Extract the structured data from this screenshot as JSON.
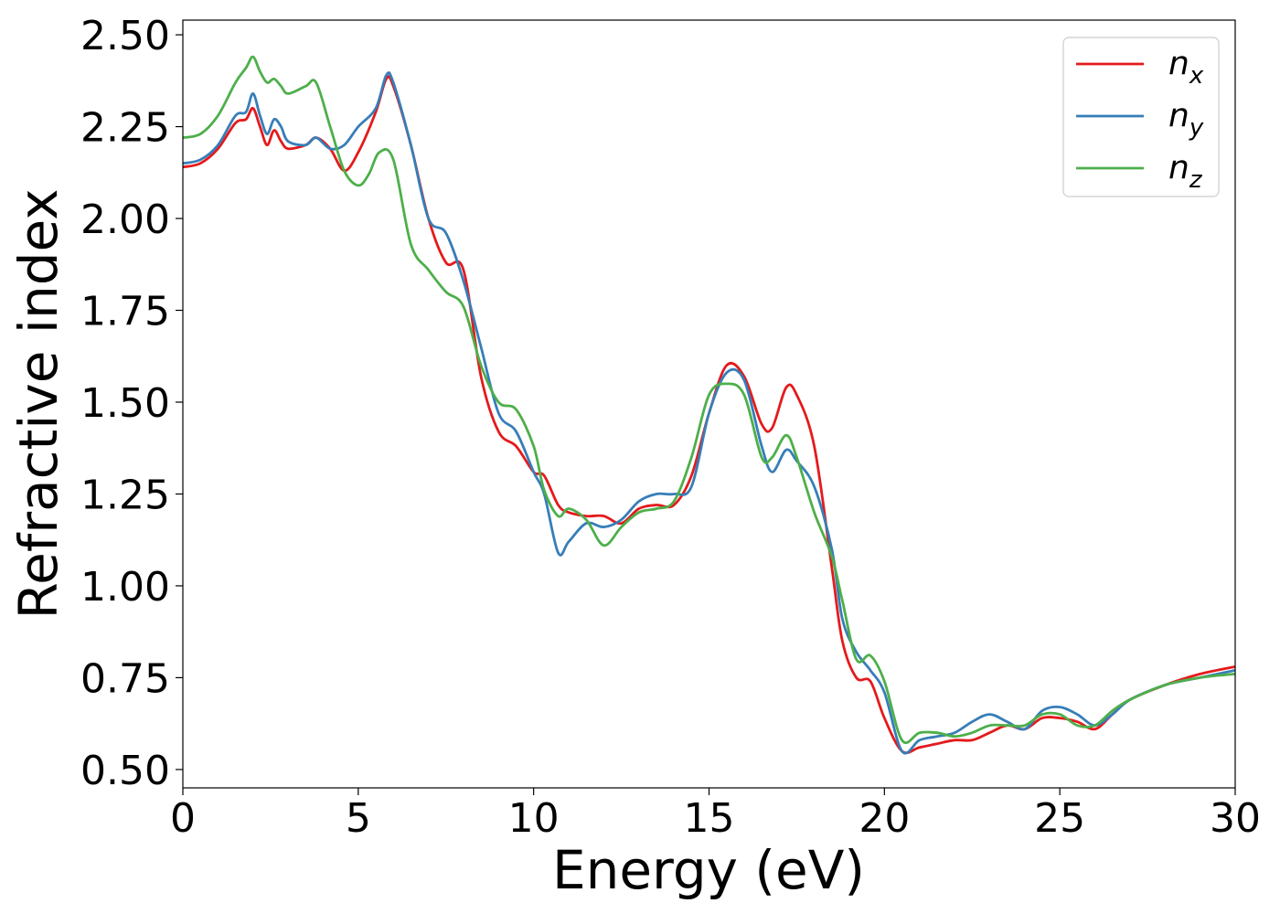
{
  "chart_data": {
    "type": "line",
    "xlabel": "Energy (eV)",
    "ylabel": "Refractive index",
    "xlim": [
      0,
      30
    ],
    "ylim": [
      0.45,
      2.54
    ],
    "xticks": [
      "0",
      "5",
      "10",
      "15",
      "20",
      "25",
      "30"
    ],
    "yticks": [
      "0.50",
      "0.75",
      "1.00",
      "1.25",
      "1.50",
      "1.75",
      "2.00",
      "2.25",
      "2.50"
    ],
    "grid": false,
    "legend_position": "top-right",
    "series": [
      {
        "name": "n",
        "subscript": "x",
        "color": "#e41a1c",
        "points": [
          [
            0,
            2.14
          ],
          [
            0.5,
            2.15
          ],
          [
            1,
            2.19
          ],
          [
            1.5,
            2.26
          ],
          [
            1.8,
            2.27
          ],
          [
            2,
            2.3
          ],
          [
            2.2,
            2.25
          ],
          [
            2.4,
            2.2
          ],
          [
            2.6,
            2.24
          ],
          [
            2.8,
            2.21
          ],
          [
            3,
            2.19
          ],
          [
            3.5,
            2.2
          ],
          [
            3.8,
            2.22
          ],
          [
            4.2,
            2.19
          ],
          [
            4.6,
            2.13
          ],
          [
            5,
            2.18
          ],
          [
            5.5,
            2.29
          ],
          [
            5.8,
            2.38
          ],
          [
            6,
            2.36
          ],
          [
            6.5,
            2.2
          ],
          [
            7,
            2.0
          ],
          [
            7.5,
            1.88
          ],
          [
            8,
            1.86
          ],
          [
            8.5,
            1.57
          ],
          [
            9,
            1.42
          ],
          [
            9.5,
            1.38
          ],
          [
            10,
            1.31
          ],
          [
            10.3,
            1.3
          ],
          [
            10.7,
            1.22
          ],
          [
            11,
            1.2
          ],
          [
            11.5,
            1.19
          ],
          [
            12,
            1.19
          ],
          [
            12.5,
            1.17
          ],
          [
            13,
            1.21
          ],
          [
            13.5,
            1.22
          ],
          [
            14,
            1.22
          ],
          [
            14.5,
            1.3
          ],
          [
            15,
            1.47
          ],
          [
            15.5,
            1.6
          ],
          [
            16,
            1.57
          ],
          [
            16.5,
            1.44
          ],
          [
            16.8,
            1.43
          ],
          [
            17.2,
            1.54
          ],
          [
            17.5,
            1.52
          ],
          [
            18,
            1.38
          ],
          [
            18.5,
            1.05
          ],
          [
            18.8,
            0.85
          ],
          [
            19.2,
            0.75
          ],
          [
            19.6,
            0.74
          ],
          [
            20,
            0.64
          ],
          [
            20.5,
            0.55
          ],
          [
            21,
            0.56
          ],
          [
            21.5,
            0.57
          ],
          [
            22,
            0.58
          ],
          [
            22.5,
            0.58
          ],
          [
            23,
            0.6
          ],
          [
            23.5,
            0.62
          ],
          [
            24,
            0.61
          ],
          [
            24.5,
            0.64
          ],
          [
            25,
            0.64
          ],
          [
            25.5,
            0.63
          ],
          [
            26,
            0.61
          ],
          [
            26.5,
            0.65
          ],
          [
            27,
            0.69
          ],
          [
            28,
            0.73
          ],
          [
            29,
            0.76
          ],
          [
            30,
            0.78
          ]
        ]
      },
      {
        "name": "n",
        "subscript": "y",
        "color": "#377eb8",
        "points": [
          [
            0,
            2.15
          ],
          [
            0.5,
            2.16
          ],
          [
            1,
            2.2
          ],
          [
            1.5,
            2.28
          ],
          [
            1.8,
            2.29
          ],
          [
            2,
            2.34
          ],
          [
            2.2,
            2.28
          ],
          [
            2.4,
            2.23
          ],
          [
            2.6,
            2.27
          ],
          [
            2.8,
            2.25
          ],
          [
            3,
            2.21
          ],
          [
            3.5,
            2.2
          ],
          [
            3.8,
            2.22
          ],
          [
            4.2,
            2.19
          ],
          [
            4.6,
            2.2
          ],
          [
            5,
            2.25
          ],
          [
            5.5,
            2.3
          ],
          [
            5.8,
            2.39
          ],
          [
            6,
            2.37
          ],
          [
            6.5,
            2.2
          ],
          [
            7,
            2.0
          ],
          [
            7.5,
            1.96
          ],
          [
            8,
            1.83
          ],
          [
            8.5,
            1.65
          ],
          [
            9,
            1.47
          ],
          [
            9.5,
            1.42
          ],
          [
            10,
            1.31
          ],
          [
            10.3,
            1.25
          ],
          [
            10.7,
            1.09
          ],
          [
            11,
            1.12
          ],
          [
            11.5,
            1.17
          ],
          [
            12,
            1.16
          ],
          [
            12.5,
            1.18
          ],
          [
            13,
            1.23
          ],
          [
            13.5,
            1.25
          ],
          [
            14,
            1.25
          ],
          [
            14.5,
            1.27
          ],
          [
            15,
            1.47
          ],
          [
            15.5,
            1.58
          ],
          [
            16,
            1.56
          ],
          [
            16.5,
            1.38
          ],
          [
            16.8,
            1.31
          ],
          [
            17.2,
            1.37
          ],
          [
            17.5,
            1.34
          ],
          [
            18,
            1.27
          ],
          [
            18.5,
            1.1
          ],
          [
            18.8,
            0.91
          ],
          [
            19.2,
            0.82
          ],
          [
            19.6,
            0.77
          ],
          [
            20,
            0.71
          ],
          [
            20.5,
            0.55
          ],
          [
            21,
            0.58
          ],
          [
            21.5,
            0.59
          ],
          [
            22,
            0.6
          ],
          [
            22.5,
            0.63
          ],
          [
            23,
            0.65
          ],
          [
            23.5,
            0.63
          ],
          [
            24,
            0.61
          ],
          [
            24.5,
            0.66
          ],
          [
            25,
            0.67
          ],
          [
            25.5,
            0.65
          ],
          [
            26,
            0.62
          ],
          [
            26.5,
            0.65
          ],
          [
            27,
            0.69
          ],
          [
            28,
            0.73
          ],
          [
            29,
            0.75
          ],
          [
            30,
            0.77
          ]
        ]
      },
      {
        "name": "n",
        "subscript": "z",
        "color": "#4daf4a",
        "points": [
          [
            0,
            2.22
          ],
          [
            0.5,
            2.23
          ],
          [
            1,
            2.28
          ],
          [
            1.5,
            2.37
          ],
          [
            1.8,
            2.41
          ],
          [
            2,
            2.44
          ],
          [
            2.2,
            2.4
          ],
          [
            2.4,
            2.37
          ],
          [
            2.6,
            2.38
          ],
          [
            2.8,
            2.36
          ],
          [
            3,
            2.34
          ],
          [
            3.5,
            2.36
          ],
          [
            3.8,
            2.37
          ],
          [
            4.2,
            2.25
          ],
          [
            4.6,
            2.13
          ],
          [
            5,
            2.09
          ],
          [
            5.3,
            2.12
          ],
          [
            5.6,
            2.18
          ],
          [
            6,
            2.16
          ],
          [
            6.5,
            1.93
          ],
          [
            7,
            1.86
          ],
          [
            7.5,
            1.8
          ],
          [
            8,
            1.76
          ],
          [
            8.5,
            1.6
          ],
          [
            9,
            1.5
          ],
          [
            9.5,
            1.48
          ],
          [
            10,
            1.38
          ],
          [
            10.3,
            1.26
          ],
          [
            10.7,
            1.19
          ],
          [
            11,
            1.21
          ],
          [
            11.5,
            1.18
          ],
          [
            12,
            1.11
          ],
          [
            12.5,
            1.16
          ],
          [
            13,
            1.2
          ],
          [
            13.5,
            1.21
          ],
          [
            14,
            1.23
          ],
          [
            14.5,
            1.35
          ],
          [
            15,
            1.52
          ],
          [
            15.5,
            1.55
          ],
          [
            16,
            1.52
          ],
          [
            16.5,
            1.35
          ],
          [
            16.8,
            1.35
          ],
          [
            17.2,
            1.41
          ],
          [
            17.5,
            1.35
          ],
          [
            18,
            1.2
          ],
          [
            18.5,
            1.08
          ],
          [
            18.8,
            0.96
          ],
          [
            19.2,
            0.8
          ],
          [
            19.6,
            0.81
          ],
          [
            20,
            0.74
          ],
          [
            20.5,
            0.58
          ],
          [
            21,
            0.6
          ],
          [
            21.5,
            0.6
          ],
          [
            22,
            0.59
          ],
          [
            22.5,
            0.6
          ],
          [
            23,
            0.62
          ],
          [
            23.5,
            0.62
          ],
          [
            24,
            0.62
          ],
          [
            24.5,
            0.65
          ],
          [
            25,
            0.65
          ],
          [
            25.5,
            0.62
          ],
          [
            26,
            0.62
          ],
          [
            26.5,
            0.66
          ],
          [
            27,
            0.69
          ],
          [
            28,
            0.73
          ],
          [
            29,
            0.75
          ],
          [
            30,
            0.76
          ]
        ]
      }
    ]
  }
}
